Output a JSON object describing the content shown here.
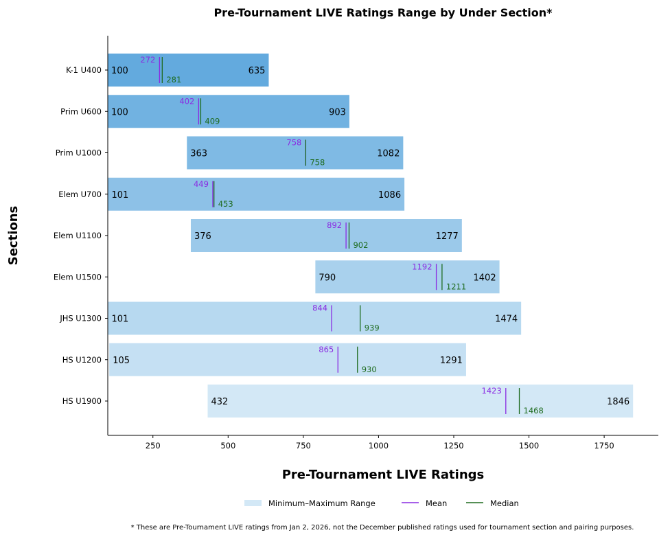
{
  "chart_data": {
    "type": "bar",
    "orientation": "horizontal-range",
    "title": "Pre-Tournament LIVE Ratings Range by Under Section*",
    "xlabel": "Pre-Tournament LIVE Ratings",
    "ylabel": "Sections",
    "xlim": [
      100,
      1930
    ],
    "xticks": [
      250,
      500,
      750,
      1000,
      1250,
      1500,
      1750
    ],
    "categories": [
      "K-1 U400",
      "Prim U600",
      "Prim U1000",
      "Elem U700",
      "Elem U1100",
      "Elem U1500",
      "JHS U1300",
      "HS U1200",
      "HS U1900"
    ],
    "series": [
      {
        "name": "Minimum",
        "values": [
          100,
          100,
          363,
          101,
          376,
          790,
          101,
          105,
          432
        ]
      },
      {
        "name": "Maximum",
        "values": [
          635,
          903,
          1082,
          1086,
          1277,
          1402,
          1474,
          1291,
          1846
        ]
      },
      {
        "name": "Mean",
        "values": [
          272,
          402,
          758,
          449,
          892,
          1192,
          844,
          865,
          1423
        ]
      },
      {
        "name": "Median",
        "values": [
          281,
          409,
          758,
          453,
          902,
          1211,
          939,
          930,
          1468
        ]
      }
    ],
    "legend": {
      "placement": "bottom-center",
      "entries": [
        "Minimum–Maximum Range",
        "Mean",
        "Median"
      ]
    },
    "colors": {
      "bar_start": "#63aade",
      "bar_end": "#d3e8f6",
      "mean": "#8a2be2",
      "median": "#1e6b1e"
    },
    "footnote": "* These are Pre-Tournament LIVE ratings from Jan 2, 2026, not the December published ratings used for tournament section and pairing purposes.",
    "grid": false
  }
}
